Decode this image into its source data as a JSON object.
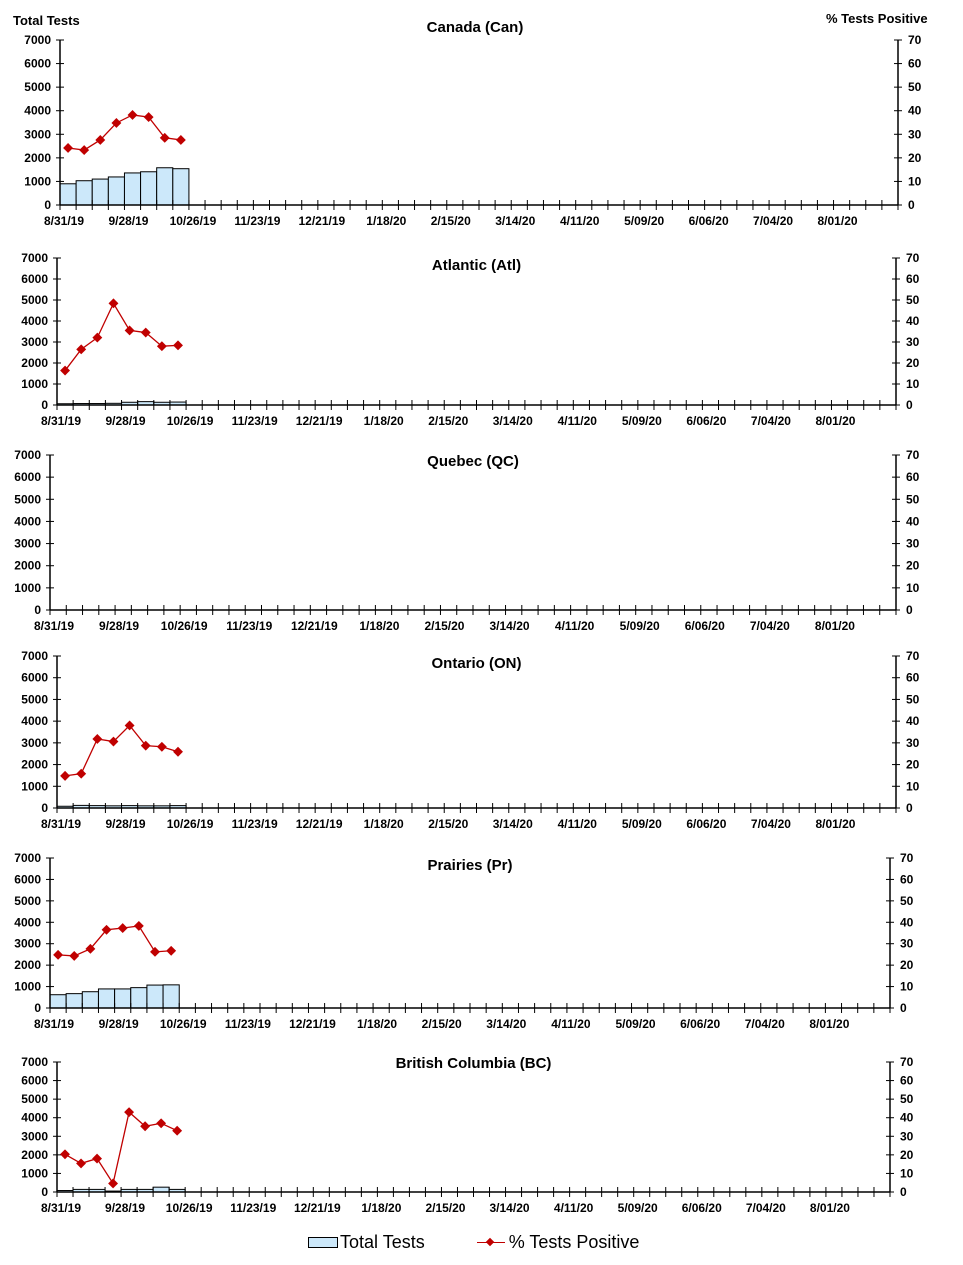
{
  "chart_data": {
    "type": "bar+line",
    "left_axis_title": "Total Tests",
    "right_axis_title": "% Tests Positive",
    "left_ylim": [
      0,
      7000
    ],
    "left_yticks": [
      0,
      1000,
      2000,
      3000,
      4000,
      5000,
      6000,
      7000
    ],
    "right_ylim": [
      0,
      70
    ],
    "right_yticks": [
      0,
      10,
      20,
      30,
      40,
      50,
      60,
      70
    ],
    "xlim": [
      "8/31/19",
      "8/29/20"
    ],
    "x_tick_labels": [
      "8/31/19",
      "9/28/19",
      "10/26/19",
      "11/23/19",
      "12/21/19",
      "1/18/20",
      "2/15/20",
      "3/14/20",
      "4/11/20",
      "5/09/20",
      "6/06/20",
      "7/04/20",
      "8/01/20"
    ],
    "colors": {
      "bars": "#cce8fa",
      "bar_border": "#000000",
      "line": "#c00000"
    },
    "legend": {
      "position": "bottom",
      "entries": [
        "Total Tests",
        "% Tests Positive"
      ]
    },
    "panels": [
      {
        "title": "Canada (Can)",
        "total_tests": [
          900,
          1030,
          1100,
          1190,
          1360,
          1410,
          1580,
          1540
        ],
        "pct_positive": [
          24.2,
          23.3,
          27.6,
          34.8,
          38.2,
          37.3,
          28.5,
          27.6
        ]
      },
      {
        "title": "Atlantic (Atl)",
        "total_tests": [
          60,
          70,
          70,
          80,
          130,
          160,
          130,
          140
        ],
        "pct_positive": [
          16.4,
          26.5,
          32.1,
          48.4,
          35.5,
          34.5,
          28.0,
          28.4
        ]
      },
      {
        "title": "Quebec (QC)",
        "total_tests": [],
        "pct_positive": []
      },
      {
        "title": "Ontario (ON)",
        "total_tests": [
          80,
          120,
          110,
          100,
          110,
          100,
          100,
          110
        ],
        "pct_positive": [
          14.8,
          15.8,
          31.8,
          30.6,
          38.0,
          28.7,
          28.2,
          25.9
        ]
      },
      {
        "title": "Prairies (Pr)",
        "total_tests": [
          620,
          670,
          760,
          890,
          890,
          950,
          1070,
          1080
        ],
        "pct_positive": [
          24.8,
          24.3,
          27.6,
          36.5,
          37.3,
          38.3,
          26.2,
          26.7
        ]
      },
      {
        "title": "British Columbia (BC)",
        "total_tests": [
          80,
          140,
          140,
          50,
          140,
          140,
          260,
          140
        ],
        "pct_positive": [
          20.3,
          15.4,
          18.0,
          4.6,
          43.0,
          35.4,
          37.0,
          33.0
        ]
      }
    ]
  }
}
